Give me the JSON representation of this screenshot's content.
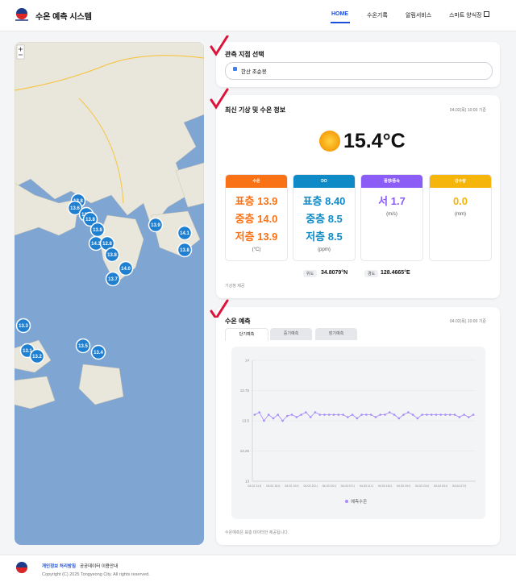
{
  "header": {
    "title": "수온 예측 시스템",
    "nav": [
      "HOME",
      "수온기록",
      "알림서비스",
      "스마트 양식장"
    ]
  },
  "map": {
    "markers": [
      "13.8",
      "13.6",
      "13.8",
      "13.8",
      "13.8",
      "14.3",
      "12.8",
      "13.8",
      "13.9",
      "14.1",
      "13.8",
      "14.0",
      "13.7",
      "13.3",
      "13.1",
      "13.2",
      "13.5",
      "13.4"
    ]
  },
  "station": {
    "title": "관측 지점 선택",
    "selected": "한산 조순봉"
  },
  "weather": {
    "title": "최신 기상 및 수온 정보",
    "time": "04.02(목) 10:00 기준",
    "temperature": "15.4°C",
    "cards": [
      {
        "title": "수온",
        "lines": [
          "표층 13.9",
          "중층 14.0",
          "저층 13.9"
        ],
        "unit": "(°C)"
      },
      {
        "title": "DO",
        "lines": [
          "표층 8.40",
          "중층 8.5",
          "저층 8.5"
        ],
        "unit": "(ppm)"
      },
      {
        "title": "풍향/풍속",
        "lines": [
          "서 1.7"
        ],
        "unit": "(m/s)"
      },
      {
        "title": "강수량",
        "lines": [
          "0.0"
        ],
        "unit": "(mm)"
      }
    ],
    "lat_label": "위도",
    "lat": "34.8079°N",
    "lon_label": "경도",
    "lon": "128.4665°E",
    "source": "기상청 제공"
  },
  "forecast": {
    "title": "수온 예측",
    "time": "04.02(목) 10:00 기준",
    "tabs": [
      "단기예측",
      "중기예측",
      "장기예측"
    ],
    "note": "수온예측은 표층 데이터만 제공됩니다."
  },
  "chart_data": {
    "type": "line",
    "categories": [
      "04.02 11시",
      null,
      null,
      null,
      "04.02 15시",
      null,
      null,
      null,
      "04.02 19시",
      null,
      null,
      null,
      "04.02 23시",
      null,
      null,
      null,
      "04.03 03시",
      null,
      null,
      null,
      "04.03 07시",
      null,
      null,
      null,
      "04.03 11시",
      null,
      null,
      null,
      "04.03 15시",
      null,
      null,
      null,
      "04.03 19시",
      null,
      null,
      null,
      "04.03 23시",
      null,
      null,
      null,
      "04.04 03시",
      null,
      null,
      null,
      "04.04 07시",
      null,
      null,
      null
    ],
    "series": [
      {
        "name": "예측수온",
        "color": "#a78bfa",
        "values": [
          13.55,
          13.57,
          13.5,
          13.55,
          13.52,
          13.55,
          13.5,
          13.54,
          13.55,
          13.53,
          13.55,
          13.57,
          13.53,
          13.57,
          13.55,
          13.55,
          13.55,
          13.55,
          13.55,
          13.55,
          13.53,
          13.55,
          13.52,
          13.55,
          13.55,
          13.55,
          13.53,
          13.55,
          13.55,
          13.57,
          13.55,
          13.52,
          13.55,
          13.57,
          13.55,
          13.52,
          13.55,
          13.55,
          13.55,
          13.55,
          13.55,
          13.55,
          13.55,
          13.55,
          13.53,
          13.55,
          13.53,
          13.55
        ]
      }
    ],
    "ylim": [
      13,
      14
    ],
    "yticks": [
      13,
      13.25,
      13.5,
      13.75,
      14
    ],
    "grid": true
  },
  "footer": {
    "links": [
      "개인정보 처리방침",
      "공공데이터 이용안내"
    ],
    "copyright": "Copyright (C) 2025 Tongyeong City. All rights reserved."
  }
}
